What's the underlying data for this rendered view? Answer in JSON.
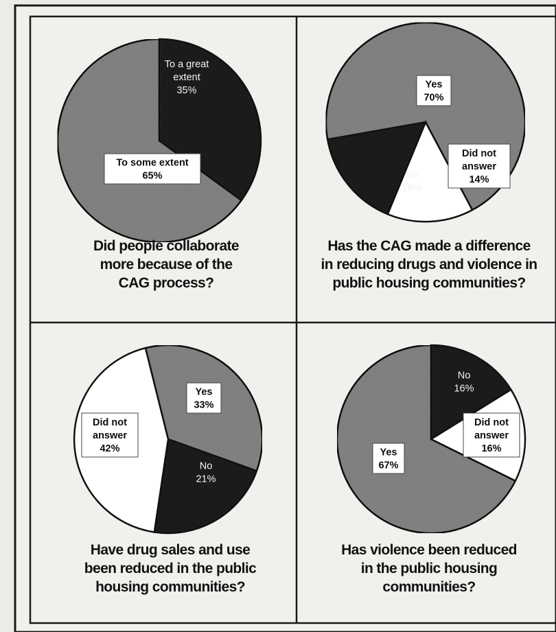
{
  "colors": {
    "dark": "#1b1b1b",
    "gray": "#8e8e8e",
    "white": "#ffffff"
  },
  "chart_data": [
    {
      "type": "pie",
      "title": [
        "Did people collaborate",
        "more because of the",
        "CAG process?"
      ],
      "slices": [
        {
          "label": [
            "To a great",
            "extent",
            "35%"
          ],
          "value": 35,
          "fill": "dark"
        },
        {
          "label": [
            "To some extent",
            "65%"
          ],
          "value": 65,
          "fill": "gray"
        }
      ]
    },
    {
      "type": "pie",
      "title": [
        "Has the CAG made a difference",
        "in reducing drugs and violence in",
        "public housing communities?"
      ],
      "slices": [
        {
          "label": [
            "Yes",
            "70%"
          ],
          "value": 70,
          "fill": "gray"
        },
        {
          "label": [
            "Did not",
            "answer",
            "14%"
          ],
          "value": 14,
          "fill": "white"
        },
        {
          "label": [
            "No",
            "16%"
          ],
          "value": 16,
          "fill": "dark"
        }
      ]
    },
    {
      "type": "pie",
      "title": [
        "Have drug sales and use",
        "been reduced in the public",
        "housing communities?"
      ],
      "slices": [
        {
          "label": [
            "Yes",
            "33%"
          ],
          "value": 33,
          "fill": "gray"
        },
        {
          "label": [
            "No",
            "21%"
          ],
          "value": 21,
          "fill": "dark"
        },
        {
          "label": [
            "Did not",
            "answer",
            "42%"
          ],
          "value": 42,
          "fill": "white"
        }
      ]
    },
    {
      "type": "pie",
      "title": [
        "Has violence been reduced",
        "in the public housing",
        "communities?"
      ],
      "slices": [
        {
          "label": [
            "No",
            "16%"
          ],
          "value": 16,
          "fill": "dark"
        },
        {
          "label": [
            "Did not",
            "answer",
            "16%"
          ],
          "value": 16,
          "fill": "white"
        },
        {
          "label": [
            "Yes",
            "67%"
          ],
          "value": 67,
          "fill": "gray"
        }
      ]
    }
  ]
}
